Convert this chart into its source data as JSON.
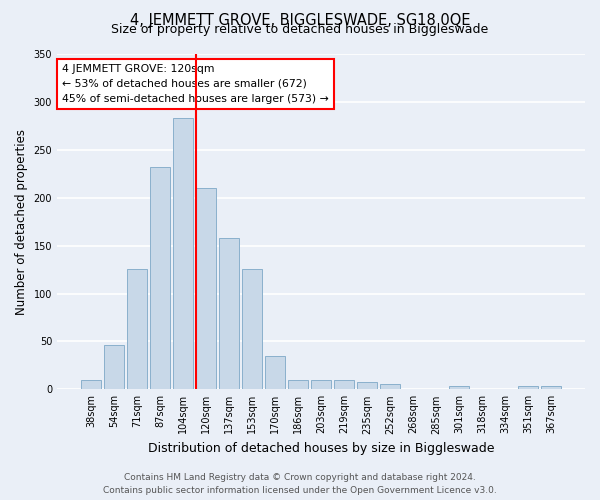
{
  "title": "4, JEMMETT GROVE, BIGGLESWADE, SG18 0QE",
  "subtitle": "Size of property relative to detached houses in Biggleswade",
  "xlabel": "Distribution of detached houses by size in Biggleswade",
  "ylabel": "Number of detached properties",
  "categories": [
    "38sqm",
    "54sqm",
    "71sqm",
    "87sqm",
    "104sqm",
    "120sqm",
    "137sqm",
    "153sqm",
    "170sqm",
    "186sqm",
    "203sqm",
    "219sqm",
    "235sqm",
    "252sqm",
    "268sqm",
    "285sqm",
    "301sqm",
    "318sqm",
    "334sqm",
    "351sqm",
    "367sqm"
  ],
  "values": [
    10,
    46,
    126,
    232,
    283,
    210,
    158,
    126,
    35,
    10,
    10,
    10,
    8,
    6,
    0,
    0,
    3,
    0,
    0,
    3,
    3
  ],
  "bar_color": "#c8d8e8",
  "bar_edge_color": "#8ab0cc",
  "red_line_x": 4.57,
  "annotation_line1": "4 JEMMETT GROVE: 120sqm",
  "annotation_line2": "← 53% of detached houses are smaller (672)",
  "annotation_line3": "45% of semi-detached houses are larger (573) →",
  "annotation_box_color": "white",
  "annotation_box_edge_color": "red",
  "ylim": [
    0,
    350
  ],
  "yticks": [
    0,
    50,
    100,
    150,
    200,
    250,
    300,
    350
  ],
  "background_color": "#eaeff7",
  "grid_color": "white",
  "footer_line1": "Contains HM Land Registry data © Crown copyright and database right 2024.",
  "footer_line2": "Contains public sector information licensed under the Open Government Licence v3.0.",
  "title_fontsize": 10.5,
  "subtitle_fontsize": 9,
  "xlabel_fontsize": 9,
  "ylabel_fontsize": 8.5,
  "tick_fontsize": 7,
  "annotation_fontsize": 7.8,
  "footer_fontsize": 6.5
}
